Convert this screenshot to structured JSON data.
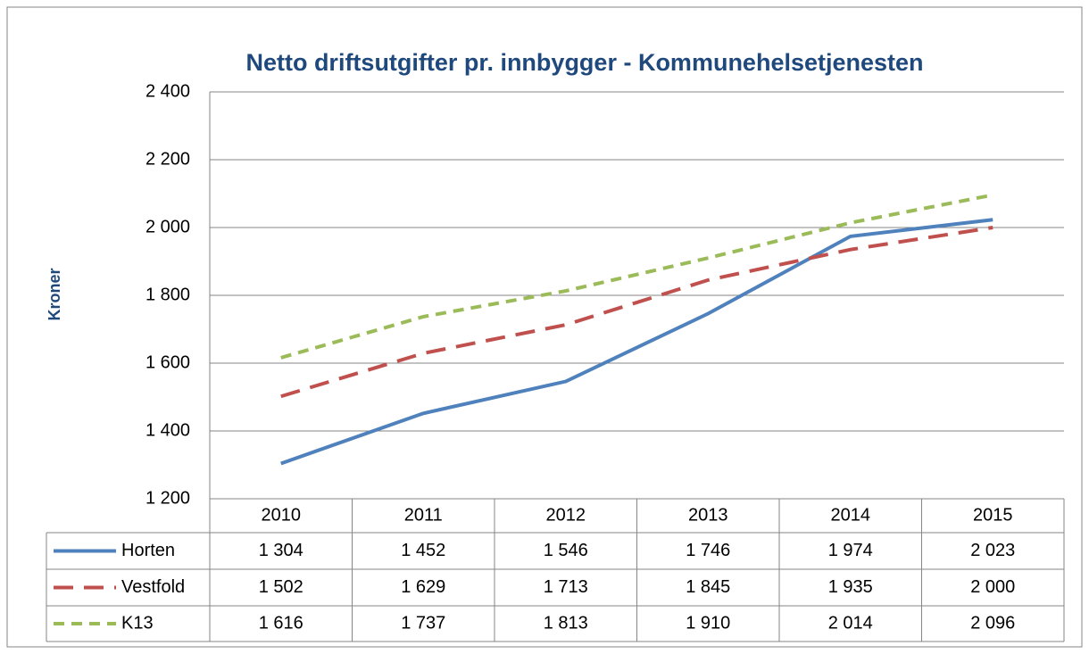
{
  "chart_data": {
    "type": "line",
    "title": "Netto driftsutgifter pr. innbygger - Kommunehelsetjenesten",
    "y_label": "Kroner",
    "categories": [
      "2010",
      "2011",
      "2012",
      "2013",
      "2014",
      "2015"
    ],
    "series": [
      {
        "name": "Horten",
        "color": "#4f81bd",
        "dash": "solid",
        "values": [
          1304,
          1452,
          1546,
          1746,
          1974,
          2023
        ],
        "value_labels": [
          "1 304",
          "1 452",
          "1 546",
          "1 746",
          "1 974",
          "2 023"
        ]
      },
      {
        "name": "Vestfold",
        "color": "#c0504d",
        "dash": "long",
        "values": [
          1502,
          1629,
          1713,
          1845,
          1935,
          2000
        ],
        "value_labels": [
          "1 502",
          "1 629",
          "1 713",
          "1 845",
          "1 935",
          "2 000"
        ]
      },
      {
        "name": "K13",
        "color": "#9bbb59",
        "dash": "short",
        "values": [
          1616,
          1737,
          1813,
          1910,
          2014,
          2096
        ],
        "value_labels": [
          "1 616",
          "1 737",
          "1 813",
          "1 910",
          "2 014",
          "2 096"
        ]
      }
    ],
    "ylim": [
      1200,
      2400
    ],
    "yticks": [
      {
        "value": 1200,
        "label": "1 200"
      },
      {
        "value": 1400,
        "label": "1 400"
      },
      {
        "value": 1600,
        "label": "1 600"
      },
      {
        "value": 1800,
        "label": "1 800"
      },
      {
        "value": 2000,
        "label": "2 000"
      },
      {
        "value": 2200,
        "label": "2 200"
      },
      {
        "value": 2400,
        "label": "2 400"
      }
    ],
    "grid": true,
    "data_table": true
  }
}
